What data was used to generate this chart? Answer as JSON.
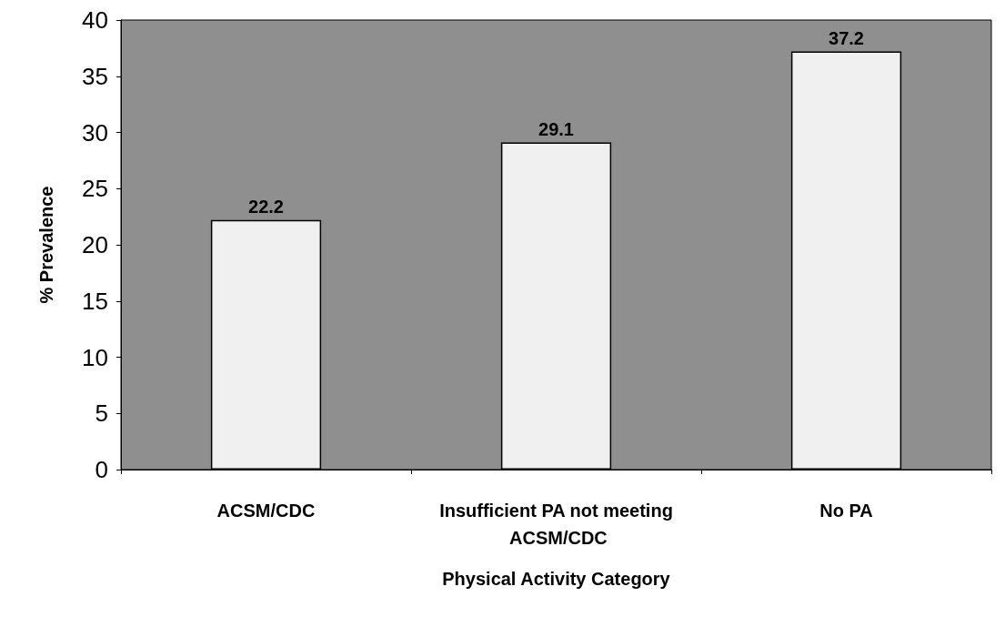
{
  "chart_data": {
    "type": "bar",
    "xlabel": "Physical Activity Category",
    "ylabel": "% Prevalence",
    "categories": [
      "ACSM/CDC",
      "Insufficient PA not meeting ACSM/CDC",
      "No PA"
    ],
    "values": [
      22.2,
      29.1,
      37.2
    ],
    "color": "#f0f0f0",
    "ylim": [
      0,
      40
    ],
    "yticks": [
      0,
      5,
      10,
      15,
      20,
      25,
      30,
      35,
      40
    ],
    "grid": false,
    "data_labels": true
  }
}
